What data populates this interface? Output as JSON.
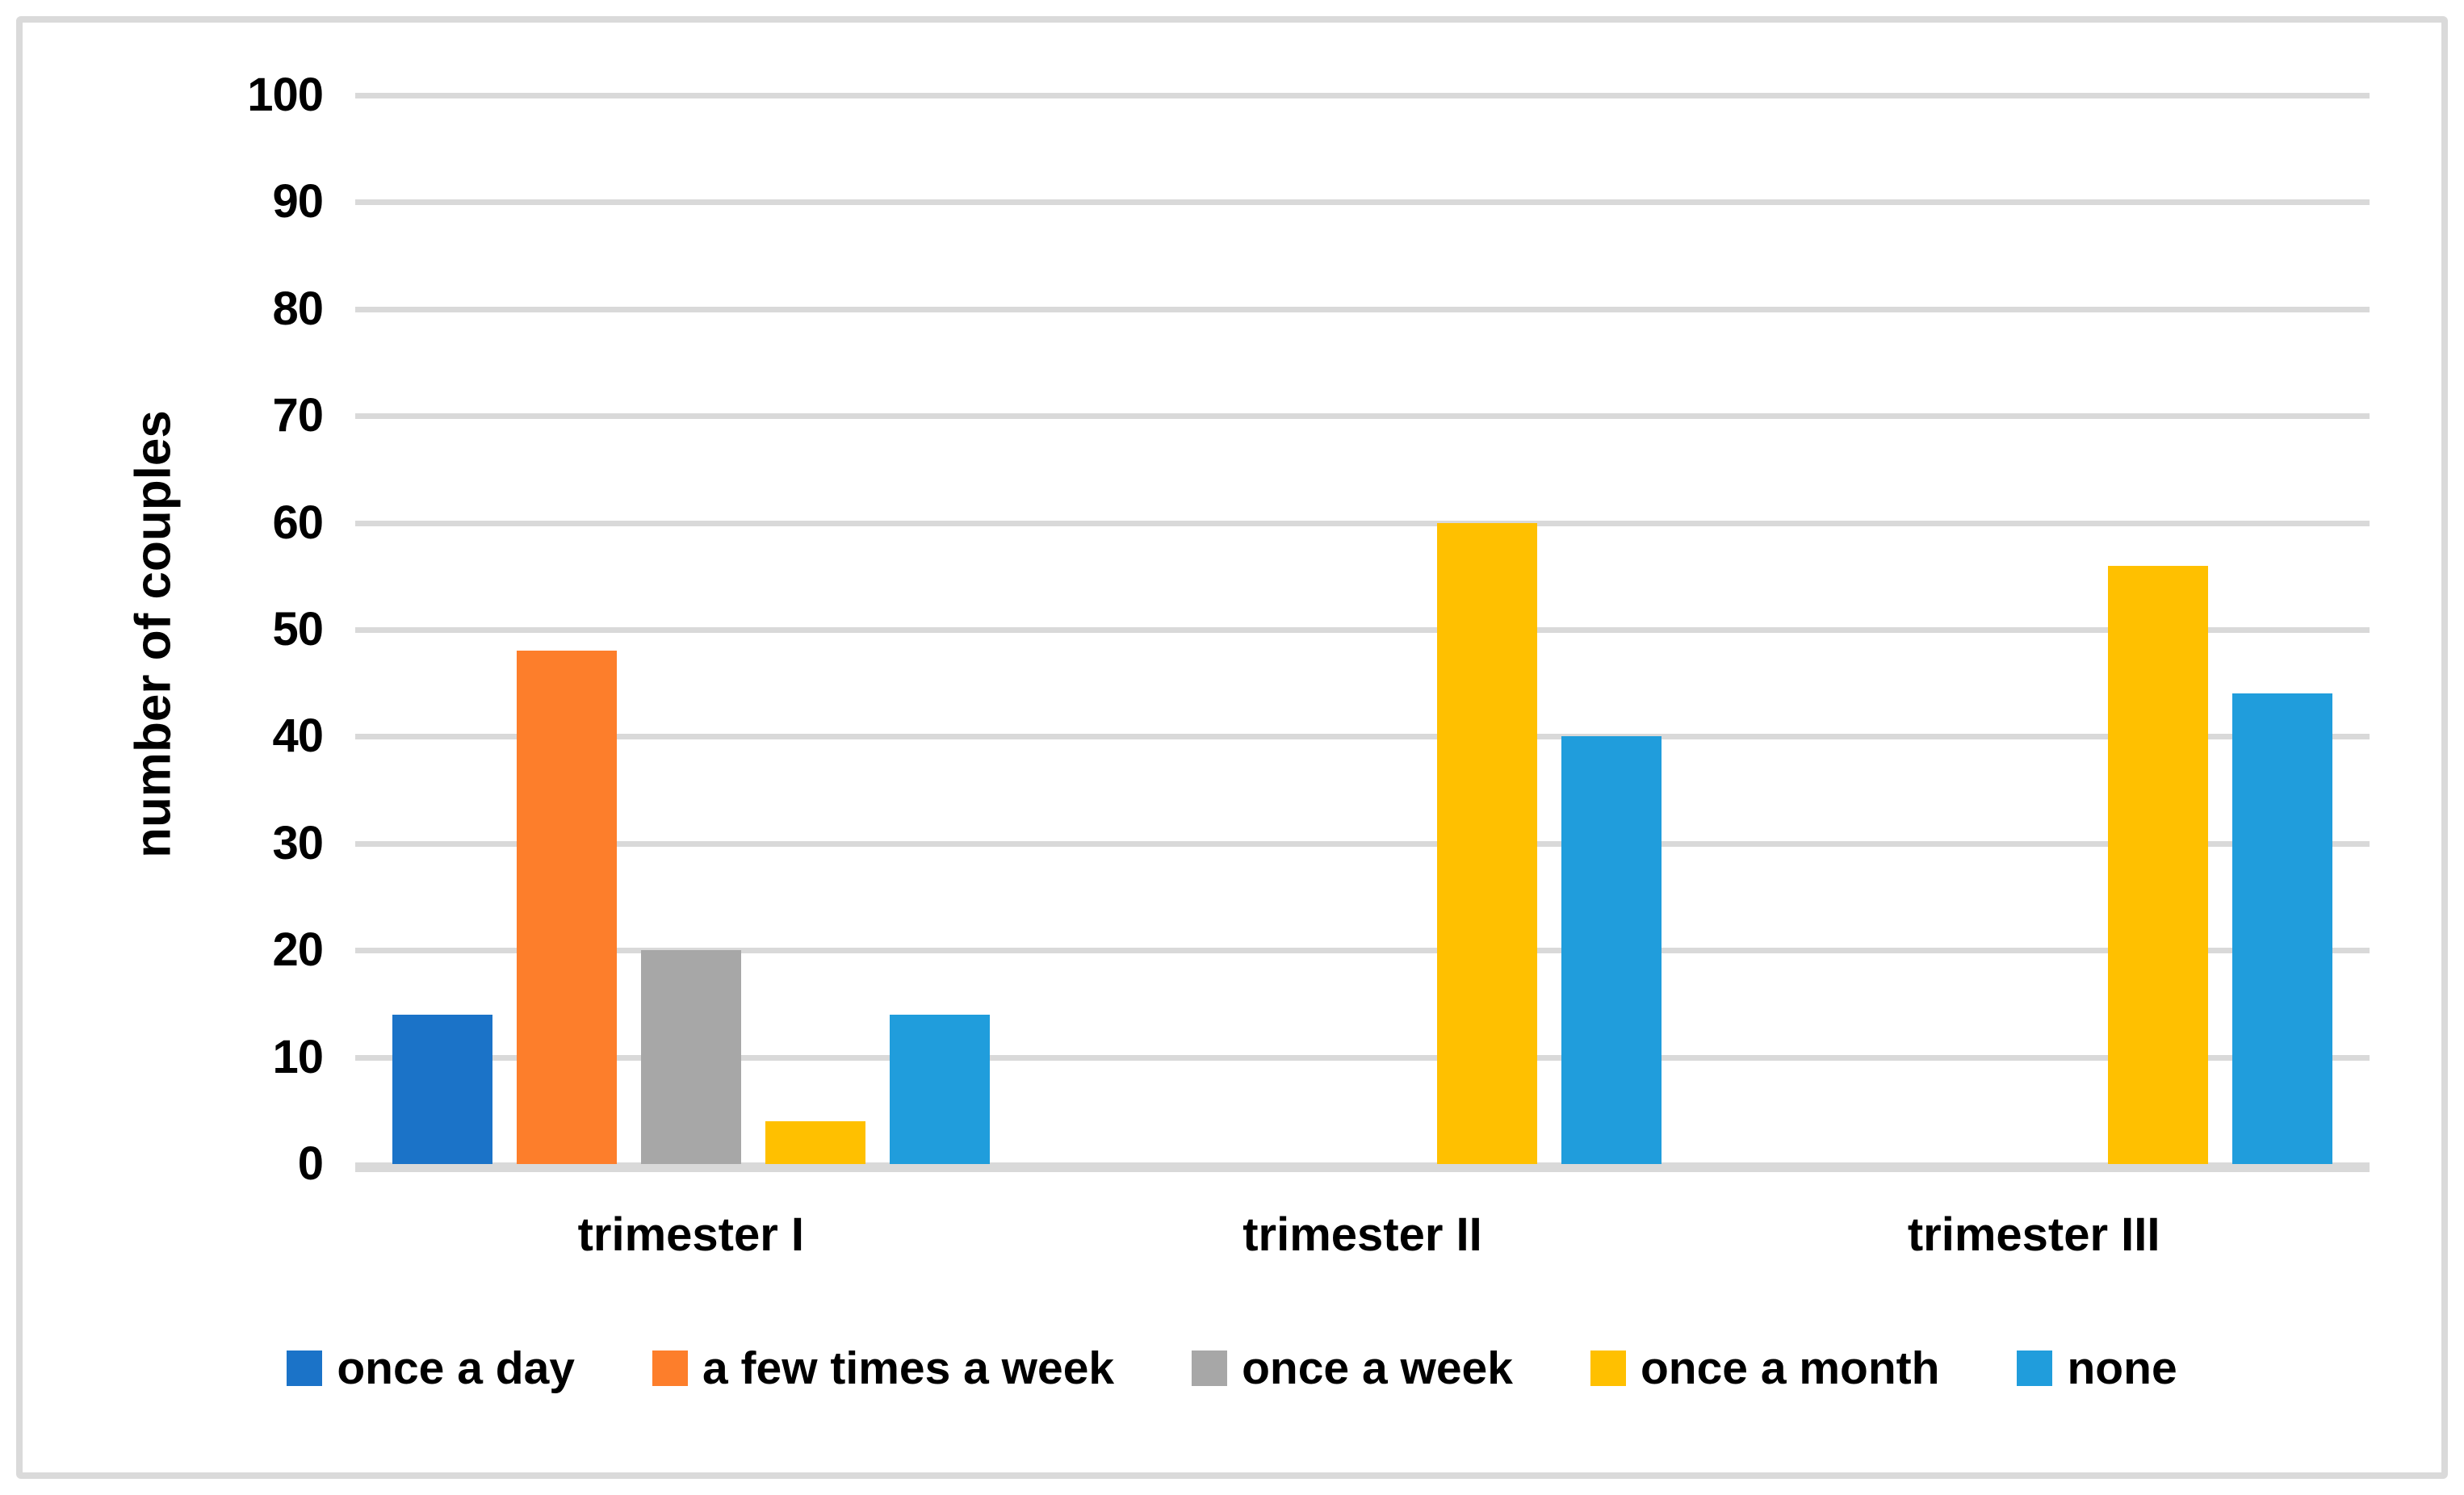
{
  "chart_data": {
    "type": "bar",
    "title": "",
    "categories": [
      "trimester I",
      "trimester II",
      "trimester III"
    ],
    "series": [
      {
        "name": "once a day",
        "color": "#1b73c8",
        "values": [
          14,
          0,
          0
        ]
      },
      {
        "name": "a few times a week",
        "color": "#fd7e2b",
        "values": [
          48,
          0,
          0
        ]
      },
      {
        "name": "once a week",
        "color": "#a7a7a7",
        "values": [
          20,
          0,
          0
        ]
      },
      {
        "name": "once a month",
        "color": "#ffc000",
        "values": [
          4,
          60,
          56
        ]
      },
      {
        "name": "none",
        "color": "#209ddc",
        "values": [
          14,
          40,
          44
        ]
      }
    ],
    "xlabel": "",
    "ylabel": "number of couples",
    "ylim": [
      0,
      100
    ],
    "ytick_step": 10,
    "yticks": [
      0,
      10,
      20,
      30,
      40,
      50,
      60,
      70,
      80,
      90,
      100
    ],
    "grid": true,
    "legend_position": "bottom",
    "legend_entries": [
      "once a day",
      "a few times a week",
      "once a week",
      "once a month",
      "none"
    ]
  },
  "colors": {
    "background": "#ffffff",
    "gridline": "#d9d9d9",
    "frame_border": "#dadada",
    "text": "#000000"
  }
}
